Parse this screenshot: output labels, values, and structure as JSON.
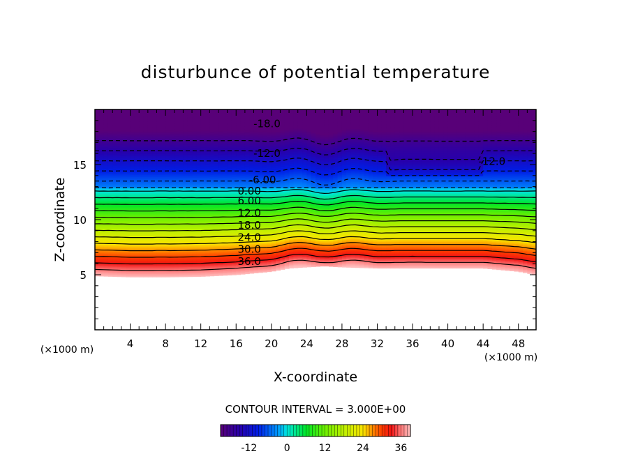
{
  "chart_data": {
    "type": "contour",
    "title": "disturbunce of potential temperature",
    "xlabel": "X-coordinate",
    "ylabel": "Z-coordinate",
    "x_unit": "(×1000 m)",
    "z_unit": "(×1000 m)",
    "xlim": [
      0,
      50
    ],
    "ylim": [
      0,
      20
    ],
    "x_ticks": [
      4,
      8,
      12,
      16,
      20,
      24,
      28,
      32,
      36,
      40,
      44,
      48
    ],
    "y_ticks": [
      5,
      10,
      15
    ],
    "contour_interval_text": "CONTOUR INTERVAL = 3.000E+00",
    "contour_interval": 3.0,
    "colorbar": {
      "range": [
        -21,
        39
      ],
      "ticks": [
        -12,
        0,
        12,
        24,
        36
      ]
    },
    "data_bottom_z": {
      "x": [
        0,
        4,
        8,
        12,
        16,
        20,
        22,
        24,
        26,
        28,
        32,
        36,
        40,
        44,
        48,
        50
      ],
      "z": [
        4.9,
        4.8,
        4.8,
        4.85,
        5.0,
        5.3,
        5.6,
        5.7,
        5.8,
        5.7,
        5.6,
        5.6,
        5.6,
        5.6,
        5.3,
        5.0
      ]
    },
    "contour_labels": [
      {
        "text": "-18.0",
        "value": -18,
        "x": 19.5,
        "z": 18.7
      },
      {
        "text": "-12.0",
        "value": -12,
        "x": 19.5,
        "z": 16.0
      },
      {
        "text": "-12.0",
        "value": -12,
        "x": 45.0,
        "z": 15.3
      },
      {
        "text": "-6.00",
        "value": -6,
        "x": 19.0,
        "z": 13.6
      },
      {
        "text": "0.00",
        "value": 0,
        "x": 17.5,
        "z": 12.6
      },
      {
        "text": "6.00",
        "value": 6,
        "x": 17.5,
        "z": 11.7
      },
      {
        "text": "12.0",
        "value": 12,
        "x": 17.5,
        "z": 10.6
      },
      {
        "text": "18.0",
        "value": 18,
        "x": 17.5,
        "z": 9.5
      },
      {
        "text": "24.0",
        "value": 24,
        "x": 17.5,
        "z": 8.4
      },
      {
        "text": "30.0",
        "value": 30,
        "x": 17.5,
        "z": 7.3
      },
      {
        "text": "36.0",
        "value": 36,
        "x": 17.5,
        "z": 6.2
      }
    ],
    "grid": false,
    "colormap": "rainbow (purple-blue-cyan-green-yellow-red-pink)"
  }
}
